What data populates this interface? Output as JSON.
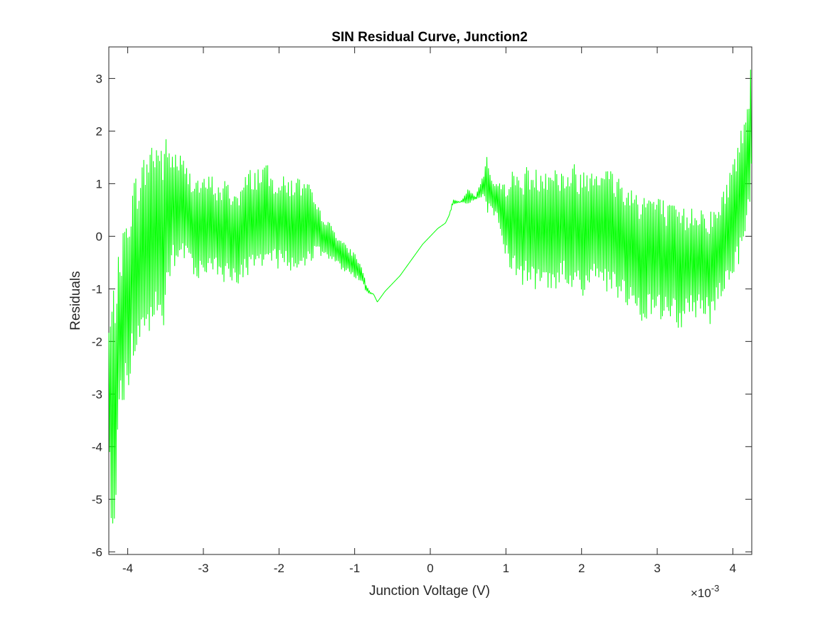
{
  "chart_data": {
    "type": "line",
    "title": "SIN Residual Curve, Junction2",
    "xlabel": "Junction Voltage (V)",
    "ylabel": "Residuals",
    "x_exponent_label": "×10",
    "x_exponent_power": "-3",
    "xlim": [
      -4.25,
      4.25
    ],
    "ylim": [
      -6.05,
      3.6
    ],
    "x_ticks": [
      -4,
      -3,
      -2,
      -1,
      0,
      1,
      2,
      3,
      4
    ],
    "x_tick_labels": [
      "-4",
      "-3",
      "-2",
      "-1",
      "0",
      "1",
      "2",
      "3",
      "4"
    ],
    "y_ticks": [
      -6,
      -5,
      -4,
      -3,
      -2,
      -1,
      0,
      1,
      2,
      3
    ],
    "y_tick_labels": [
      "-6",
      "-5",
      "-4",
      "-3",
      "-2",
      "-1",
      "0",
      "1",
      "2",
      "3"
    ],
    "grid": false,
    "legend": "none",
    "line_color": "#00ff00",
    "series": [
      {
        "envelope_x": [
          -4.25,
          -4.2,
          -4.1,
          -4.0,
          -3.9,
          -3.8,
          -3.7,
          -3.6,
          -3.55,
          -3.5,
          -3.4,
          -3.3,
          -3.2,
          -3.1,
          -3.0,
          -2.9,
          -2.8,
          -2.7,
          -2.6,
          -2.5,
          -2.4,
          -2.3,
          -2.2,
          -2.1,
          -2.0,
          -1.9,
          -1.8,
          -1.7,
          -1.6,
          -1.5,
          -1.4,
          -1.3,
          -1.2,
          -1.1,
          -1.0,
          -0.9,
          -0.85,
          -0.8,
          -0.75,
          -0.7,
          -0.6,
          -0.5,
          -0.4,
          -0.3,
          -0.2,
          -0.1,
          0.0,
          0.1,
          0.2,
          0.25,
          0.3,
          0.4,
          0.5,
          0.6,
          0.7,
          0.75,
          0.8,
          0.9,
          1.0,
          1.1,
          1.2,
          1.3,
          1.4,
          1.5,
          1.6,
          1.7,
          1.8,
          1.9,
          2.0,
          2.1,
          2.2,
          2.3,
          2.4,
          2.5,
          2.6,
          2.7,
          2.8,
          2.9,
          3.0,
          3.1,
          3.2,
          3.3,
          3.4,
          3.5,
          3.6,
          3.7,
          3.8,
          3.9,
          4.0,
          4.1,
          4.2,
          4.25
        ],
        "envelope_upper": [
          -1.6,
          -1.0,
          -0.2,
          0.6,
          1.2,
          1.5,
          1.9,
          2.0,
          1.8,
          1.9,
          1.7,
          1.6,
          1.3,
          1.2,
          1.1,
          1.2,
          1.0,
          1.1,
          0.9,
          1.0,
          1.3,
          1.3,
          1.5,
          1.2,
          1.2,
          1.1,
          1.2,
          1.1,
          1.0,
          0.6,
          0.4,
          0.2,
          0.0,
          -0.2,
          -0.3,
          -0.6,
          -0.9,
          -1.05,
          -1.1,
          -1.25,
          -1.05,
          -0.9,
          -0.75,
          -0.55,
          -0.35,
          -0.15,
          0.0,
          0.15,
          0.25,
          0.4,
          0.7,
          0.65,
          0.9,
          0.75,
          1.2,
          1.6,
          1.2,
          1.0,
          1.1,
          1.3,
          1.2,
          1.4,
          1.3,
          1.4,
          1.5,
          1.3,
          1.3,
          1.4,
          1.3,
          1.4,
          1.5,
          1.4,
          1.3,
          1.2,
          1.0,
          1.0,
          0.9,
          0.9,
          0.8,
          0.7,
          0.6,
          0.6,
          0.5,
          0.7,
          0.6,
          0.5,
          0.6,
          1.0,
          1.5,
          2.0,
          2.8,
          3.6
        ],
        "envelope_lower": [
          -4.2,
          -6.05,
          -3.5,
          -3.0,
          -2.3,
          -2.1,
          -1.9,
          -1.8,
          -2.3,
          -1.3,
          -0.7,
          -0.6,
          -0.5,
          -0.8,
          -0.8,
          -0.6,
          -0.9,
          -0.9,
          -0.9,
          -0.9,
          -0.8,
          -0.6,
          -0.8,
          -0.7,
          -0.6,
          -0.6,
          -0.9,
          -0.6,
          -0.5,
          -0.4,
          -0.4,
          -0.5,
          -0.6,
          -0.7,
          -0.8,
          -0.9,
          -1.05,
          -1.1,
          -1.1,
          -1.25,
          -1.05,
          -0.9,
          -0.75,
          -0.55,
          -0.35,
          -0.15,
          0.0,
          0.15,
          0.25,
          0.4,
          0.6,
          0.65,
          0.6,
          0.7,
          0.75,
          0.45,
          0.4,
          0.3,
          -0.5,
          -0.7,
          -0.9,
          -1.0,
          -1.1,
          -0.9,
          -1.3,
          -0.9,
          -1.0,
          -1.0,
          -1.2,
          -1.0,
          -1.1,
          -1.0,
          -1.2,
          -1.3,
          -1.4,
          -1.6,
          -1.9,
          -1.5,
          -1.6,
          -1.7,
          -1.5,
          -1.9,
          -1.5,
          -1.6,
          -1.5,
          -1.7,
          -1.3,
          -1.0,
          -0.8,
          -0.5,
          0.2,
          0.9
        ],
        "sample_step": 0.0105
      }
    ]
  }
}
